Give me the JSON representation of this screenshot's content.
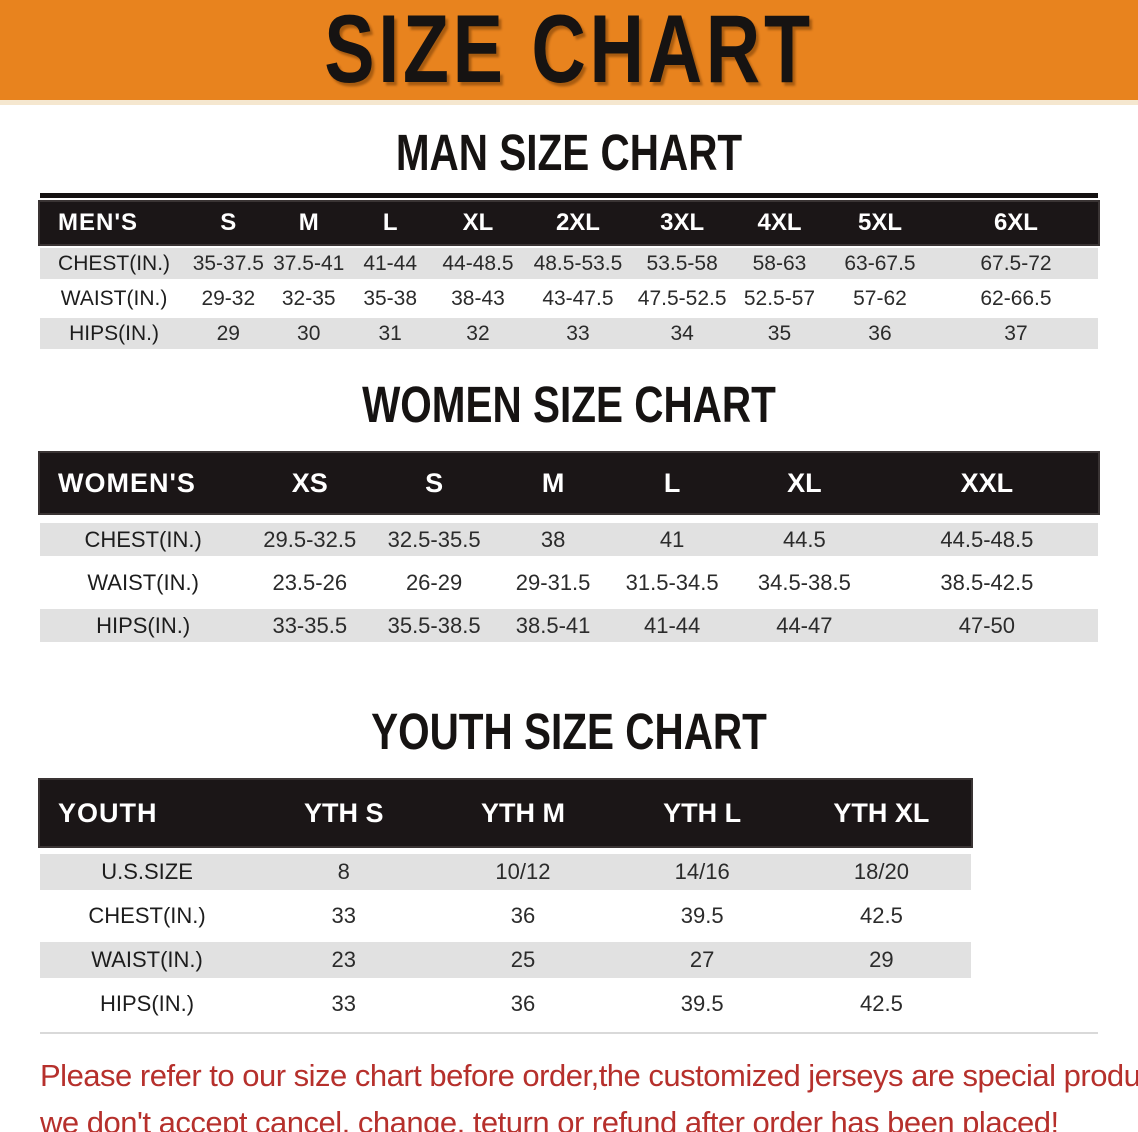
{
  "banner": {
    "title": "SIZE CHART"
  },
  "sections": {
    "men": {
      "heading": "MAN SIZE CHART",
      "table": {
        "label": "MEN'S",
        "columns": [
          "S",
          "M",
          "L",
          "XL",
          "2XL",
          "3XL",
          "4XL",
          "5XL",
          "6XL"
        ],
        "rows": [
          {
            "label": "CHEST(IN.)",
            "values": [
              "35-37.5",
              "37.5-41",
              "41-44",
              "44-48.5",
              "48.5-53.5",
              "53.5-58",
              "58-63",
              "63-67.5",
              "67.5-72"
            ]
          },
          {
            "label": "WAIST(IN.)",
            "values": [
              "29-32",
              "32-35",
              "35-38",
              "38-43",
              "43-47.5",
              "47.5-52.5",
              "52.5-57",
              "57-62",
              "62-66.5"
            ]
          },
          {
            "label": "HIPS(IN.)",
            "values": [
              "29",
              "30",
              "31",
              "32",
              "33",
              "34",
              "35",
              "36",
              "37"
            ]
          }
        ]
      }
    },
    "women": {
      "heading": "WOMEN SIZE CHART",
      "table": {
        "label": "WOMEN'S",
        "columns": [
          "XS",
          "S",
          "M",
          "L",
          "XL",
          "XXL"
        ],
        "rows": [
          {
            "label": "CHEST(IN.)",
            "values": [
              "29.5-32.5",
              "32.5-35.5",
              "38",
              "41",
              "44.5",
              "44.5-48.5"
            ]
          },
          {
            "label": "WAIST(IN.)",
            "values": [
              "23.5-26",
              "26-29",
              "29-31.5",
              "31.5-34.5",
              "34.5-38.5",
              "38.5-42.5"
            ]
          },
          {
            "label": "HIPS(IN.)",
            "values": [
              "33-35.5",
              "35.5-38.5",
              "38.5-41",
              "41-44",
              "44-47",
              "47-50"
            ]
          }
        ]
      }
    },
    "youth": {
      "heading": "YOUTH SIZE CHART",
      "table": {
        "label": "YOUTH",
        "columns": [
          "YTH S",
          "YTH M",
          "YTH L",
          "YTH XL"
        ],
        "rows": [
          {
            "label": "U.S.SIZE",
            "values": [
              "8",
              "10/12",
              "14/16",
              "18/20"
            ]
          },
          {
            "label": "CHEST(IN.)",
            "values": [
              "33",
              "36",
              "39.5",
              "42.5"
            ]
          },
          {
            "label": "WAIST(IN.)",
            "values": [
              "23",
              "25",
              "27",
              "29"
            ]
          },
          {
            "label": "HIPS(IN.)",
            "values": [
              "33",
              "36",
              "39.5",
              "42.5"
            ]
          }
        ]
      }
    }
  },
  "footer": {
    "line1": "Please refer to our size chart before order,the customized jerseys are special products,",
    "line2": "we don't accept cancel, change, teturn or refund after order has been placed!"
  },
  "colors": {
    "banner_orange": "#E8831E",
    "header_black": "#1B1617",
    "row_gray": "#E1E1E1",
    "disclaimer_red": "#B6302C"
  }
}
